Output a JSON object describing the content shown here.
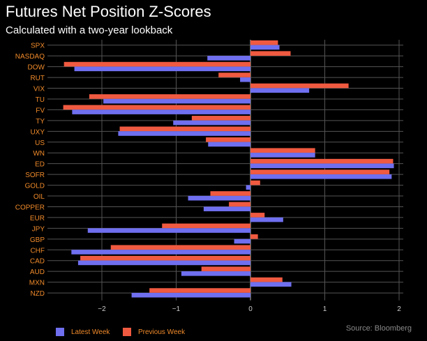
{
  "header": {
    "title": "Futures Net Position Z-Scores",
    "subtitle": "Calculated with a two-year lookback"
  },
  "source": "Source: Bloomberg",
  "colors": {
    "latest": "#6f6ff0",
    "previous": "#f05a40",
    "category_label": "#f08a2a",
    "grid": "#555555",
    "axis_text": "#cccccc"
  },
  "chart_data": {
    "type": "bar",
    "orientation": "horizontal",
    "title": "Futures Net Position Z-Scores",
    "subtitle": "Calculated with a two-year lookback",
    "xlim": [
      -2.6,
      2.1
    ],
    "x_ticks": [
      -2,
      -1,
      0,
      1,
      2
    ],
    "x_tick_labels": [
      "−2",
      "−1",
      "0",
      "1",
      "2"
    ],
    "grid": true,
    "legend_position": "bottom-left",
    "categories": [
      "SPX",
      "NASDAQ",
      "DOW",
      "RUT",
      "VIX",
      "TU",
      "FV",
      "TY",
      "UXY",
      "US",
      "WN",
      "ED",
      "SOFR",
      "GOLD",
      "OIL",
      "COPPER",
      "EUR",
      "JPY",
      "GBP",
      "CHF",
      "CAD",
      "AUD",
      "MXN",
      "NZD"
    ],
    "series": [
      {
        "name": "Latest Week",
        "values": [
          0.39,
          -0.58,
          -2.37,
          -0.14,
          0.79,
          -1.98,
          -2.4,
          -1.04,
          -1.78,
          -0.57,
          0.87,
          1.93,
          1.9,
          -0.06,
          -0.84,
          -0.63,
          0.44,
          -2.19,
          -0.22,
          -2.41,
          -2.32,
          -0.93,
          0.55,
          -1.6
        ]
      },
      {
        "name": "Previous Week",
        "values": [
          0.37,
          0.54,
          -2.51,
          -0.43,
          1.32,
          -2.17,
          -2.52,
          -0.79,
          -1.76,
          -0.6,
          0.87,
          1.92,
          1.87,
          0.13,
          -0.54,
          -0.29,
          0.19,
          -1.19,
          0.1,
          -1.88,
          -2.29,
          -0.66,
          0.43,
          -1.36
        ]
      }
    ]
  }
}
